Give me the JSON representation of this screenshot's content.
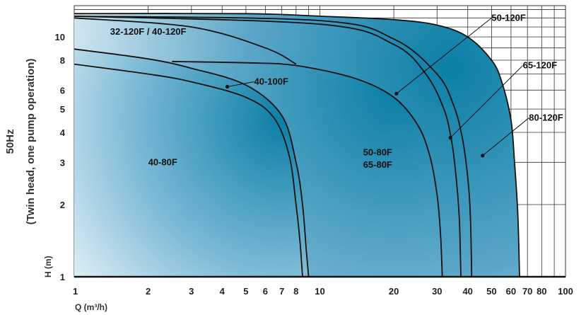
{
  "chart_data": {
    "type": "area",
    "title": "",
    "xlabel": "Q (m³/h)",
    "ylabel": "H (m)",
    "ylabel_side": [
      "(Twin head, one pump operation)",
      "50Hz"
    ],
    "x_scale": "log",
    "y_scale": "log",
    "xlim": [
      1,
      100
    ],
    "ylim": [
      1,
      13.5
    ],
    "grid": true,
    "x_ticks": [
      1,
      2,
      3,
      4,
      5,
      6,
      7,
      8,
      10,
      20,
      30,
      40,
      50,
      60,
      70,
      80,
      100
    ],
    "x_tick_labels": [
      "1",
      "2",
      "3",
      "4",
      "5",
      "6",
      "7",
      "8",
      "10",
      "20",
      "30",
      "40",
      "50",
      "60",
      "70",
      "80",
      "100"
    ],
    "y_ticks": [
      1,
      2,
      3,
      4,
      5,
      6,
      8,
      10
    ],
    "y_tick_labels": [
      "1",
      "2",
      "3",
      "4",
      "5",
      "6",
      "8",
      "10"
    ],
    "colors": {
      "fill_dark": "#0a7fa6",
      "fill_light": "#ffffff",
      "outline": "#111111"
    },
    "series": [
      {
        "name": "80-120F",
        "curve": [
          [
            1,
            12.5
          ],
          [
            5,
            12.5
          ],
          [
            10,
            12.2
          ],
          [
            20,
            11.8
          ],
          [
            30,
            11.2
          ],
          [
            40,
            10.0
          ],
          [
            50,
            8.0
          ],
          [
            55,
            6.5
          ],
          [
            60,
            4.5
          ],
          [
            62,
            3.0
          ],
          [
            64,
            1.8
          ],
          [
            65,
            1.0
          ]
        ]
      },
      {
        "name": "65-120F",
        "curve": [
          [
            1,
            12.2
          ],
          [
            10,
            11.7
          ],
          [
            20,
            9.8
          ],
          [
            30,
            7.0
          ],
          [
            35,
            5.2
          ],
          [
            38,
            3.8
          ],
          [
            40,
            2.6
          ],
          [
            41,
            1.8
          ],
          [
            41.5,
            1.0
          ]
        ]
      },
      {
        "name": "50-120F",
        "curve": [
          [
            1,
            12.2
          ],
          [
            10,
            11.3
          ],
          [
            20,
            9.3
          ],
          [
            27,
            7.0
          ],
          [
            32,
            5.0
          ],
          [
            34.5,
            3.6
          ],
          [
            36,
            2.5
          ],
          [
            37,
            1.7
          ],
          [
            37.5,
            1.0
          ]
        ]
      },
      {
        "name": "32-120F / 40-120F",
        "curve": [
          [
            1,
            12.0
          ],
          [
            3,
            11.0
          ],
          [
            6,
            9.0
          ],
          [
            8,
            7.7
          ]
        ]
      },
      {
        "name": "50-80F / 65-80F",
        "curve": [
          [
            2.5,
            7.9
          ],
          [
            5,
            7.8
          ],
          [
            8,
            7.6
          ],
          [
            14,
            6.7
          ],
          [
            20,
            5.6
          ],
          [
            25,
            4.3
          ],
          [
            28,
            3.2
          ],
          [
            30,
            2.2
          ],
          [
            31,
            1.5
          ],
          [
            31.5,
            1.0
          ]
        ]
      },
      {
        "name": "40-100F",
        "curve": [
          [
            1,
            8.9
          ],
          [
            2,
            8.1
          ],
          [
            3,
            7.4
          ],
          [
            5,
            6.3
          ],
          [
            7,
            4.7
          ],
          [
            8,
            3.0
          ],
          [
            8.5,
            2.0
          ],
          [
            8.8,
            1.3
          ],
          [
            9.0,
            1.0
          ]
        ]
      },
      {
        "name": "40-80F",
        "curve": [
          [
            1,
            7.7
          ],
          [
            2,
            7.0
          ],
          [
            3,
            6.5
          ],
          [
            5,
            5.6
          ],
          [
            6.5,
            4.6
          ],
          [
            7.5,
            3.2
          ],
          [
            8.0,
            2.0
          ],
          [
            8.3,
            1.4
          ],
          [
            8.5,
            1.0
          ]
        ]
      }
    ],
    "annotations": [
      {
        "text": "32-120F / 40-120F",
        "pos": [
          1.4,
          10.5
        ],
        "marker": null
      },
      {
        "text": "40-100F",
        "pos": [
          5.4,
          6.5
        ],
        "marker": [
          4.2,
          6.2
        ]
      },
      {
        "text": "50-120F",
        "pos": [
          50,
          12.0
        ],
        "marker": [
          20.5,
          5.8
        ]
      },
      {
        "text": "65-120F",
        "pos": [
          67,
          7.6
        ],
        "marker": [
          34,
          3.8
        ]
      },
      {
        "text": "80-120F",
        "pos": [
          71,
          4.6
        ],
        "marker": [
          46,
          3.2
        ]
      },
      {
        "text": "40-80F",
        "pos": [
          2.0,
          3.0
        ],
        "marker": null
      },
      {
        "text": "50-80F",
        "pos": [
          15,
          3.3
        ],
        "marker": null
      },
      {
        "text": "65-80F",
        "pos": [
          15,
          2.93
        ],
        "marker": null
      }
    ]
  }
}
